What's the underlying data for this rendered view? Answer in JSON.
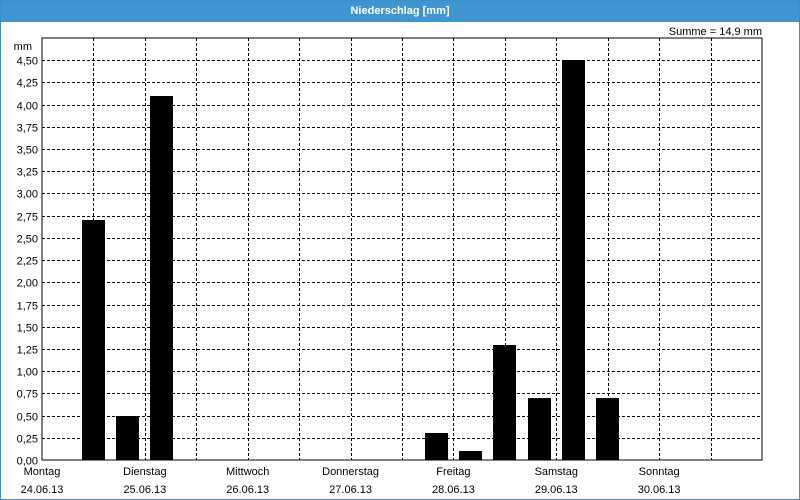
{
  "window": {
    "title": "Niederschlag [mm]"
  },
  "chart_data": {
    "type": "bar",
    "title": "Niederschlag [mm]",
    "ylabel": "mm",
    "summary": "Summe = 14,9 mm",
    "ylim": [
      0,
      4.75
    ],
    "yticks": [
      "0,00",
      "0,25",
      "0,50",
      "0,75",
      "1,00",
      "1,25",
      "1,50",
      "1,75",
      "2,00",
      "2,25",
      "2,50",
      "2,75",
      "3,00",
      "3,25",
      "3,50",
      "3,75",
      "4,00",
      "4,25",
      "4,50"
    ],
    "days": [
      {
        "name": "Montag",
        "date": "24.06.13"
      },
      {
        "name": "Dienstag",
        "date": "25.06.13"
      },
      {
        "name": "Mittwoch",
        "date": "26.06.13"
      },
      {
        "name": "Donnerstag",
        "date": "27.06.13"
      },
      {
        "name": "Freitag",
        "date": "28.06.13"
      },
      {
        "name": "Samstag",
        "date": "29.06.13"
      },
      {
        "name": "Sonntag",
        "date": "30.06.13"
      }
    ],
    "x_unit": "hours since 24.06.13 00:00",
    "bars": [
      {
        "x": 12,
        "value": 2.7
      },
      {
        "x": 20,
        "value": 0.5
      },
      {
        "x": 28,
        "value": 4.1
      },
      {
        "x": 92,
        "value": 0.3
      },
      {
        "x": 100,
        "value": 0.1
      },
      {
        "x": 108,
        "value": 1.3
      },
      {
        "x": 116,
        "value": 0.7
      },
      {
        "x": 124,
        "value": 4.5
      },
      {
        "x": 132,
        "value": 0.7
      }
    ],
    "grid": true,
    "colors": {
      "bar": "#000000",
      "grid": "#000000",
      "titlebar": "#3f95cf"
    }
  }
}
